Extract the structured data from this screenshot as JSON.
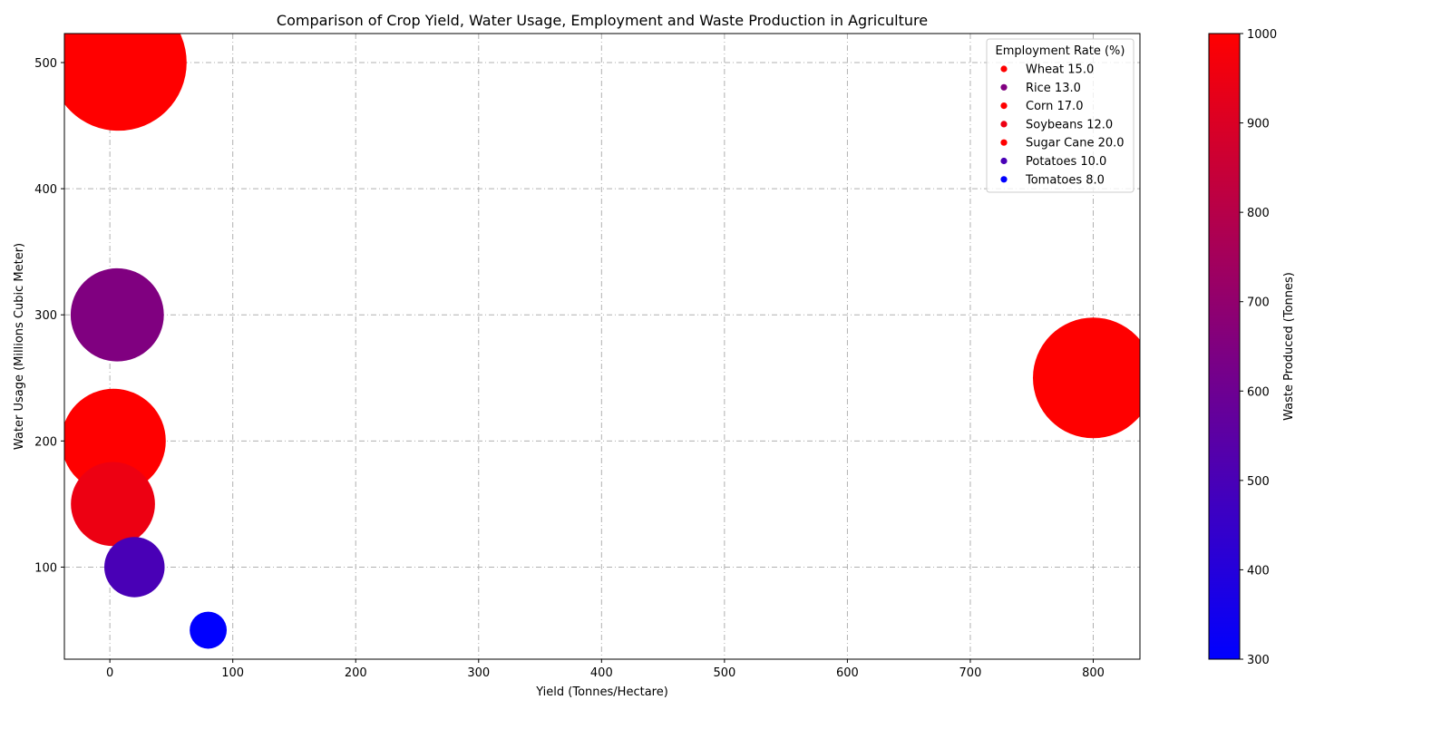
{
  "chart_data": {
    "type": "scatter",
    "title": "Comparison of Crop Yield, Water Usage, Employment and Waste Production in Agriculture",
    "xlabel": "Yield (Tonnes/Hectare)",
    "ylabel": "Water Usage (Millions Cubic Meter)",
    "xlim": [
      -37,
      838
    ],
    "ylim": [
      27,
      523
    ],
    "xticks": [
      0,
      100,
      200,
      300,
      400,
      500,
      600,
      700,
      800
    ],
    "yticks": [
      100,
      200,
      300,
      400,
      500
    ],
    "grid": true,
    "legend_title": "Employment Rate (%)",
    "legend_position": "top-right",
    "colorbar": {
      "label": "Waste Produced (Tonnes)",
      "range": [
        300,
        1000
      ],
      "ticks": [
        300,
        400,
        500,
        600,
        700,
        800,
        900,
        1000
      ],
      "colors": [
        "#0000ff",
        "#ff0000"
      ]
    },
    "points": [
      {
        "name": "Wheat",
        "label": "Wheat 15.0",
        "employment": 15.0,
        "x": 3,
        "y": 200,
        "waste": 1000,
        "size": 5400
      },
      {
        "name": "Rice",
        "label": "Rice 13.0",
        "employment": 13.0,
        "x": 6,
        "y": 300,
        "waste": 650,
        "size": 4300
      },
      {
        "name": "Corn",
        "label": "Corn 17.0",
        "employment": 17.0,
        "x": 7,
        "y": 500,
        "waste": 1000,
        "size": 9200
      },
      {
        "name": "Soybeans",
        "label": "Soybeans 12.0",
        "employment": 12.0,
        "x": 2.5,
        "y": 150,
        "waste": 950,
        "size": 3500
      },
      {
        "name": "Sugar Cane",
        "label": "Sugar Cane 20.0",
        "employment": 20.0,
        "x": 800,
        "y": 250,
        "waste": 1000,
        "size": 7200
      },
      {
        "name": "Potatoes",
        "label": "Potatoes 10.0",
        "employment": 10.0,
        "x": 20,
        "y": 100,
        "waste": 500,
        "size": 1800
      },
      {
        "name": "Tomatoes",
        "label": "Tomatoes 8.0",
        "employment": 8.0,
        "x": 80,
        "y": 50,
        "waste": 300,
        "size": 680
      }
    ]
  }
}
